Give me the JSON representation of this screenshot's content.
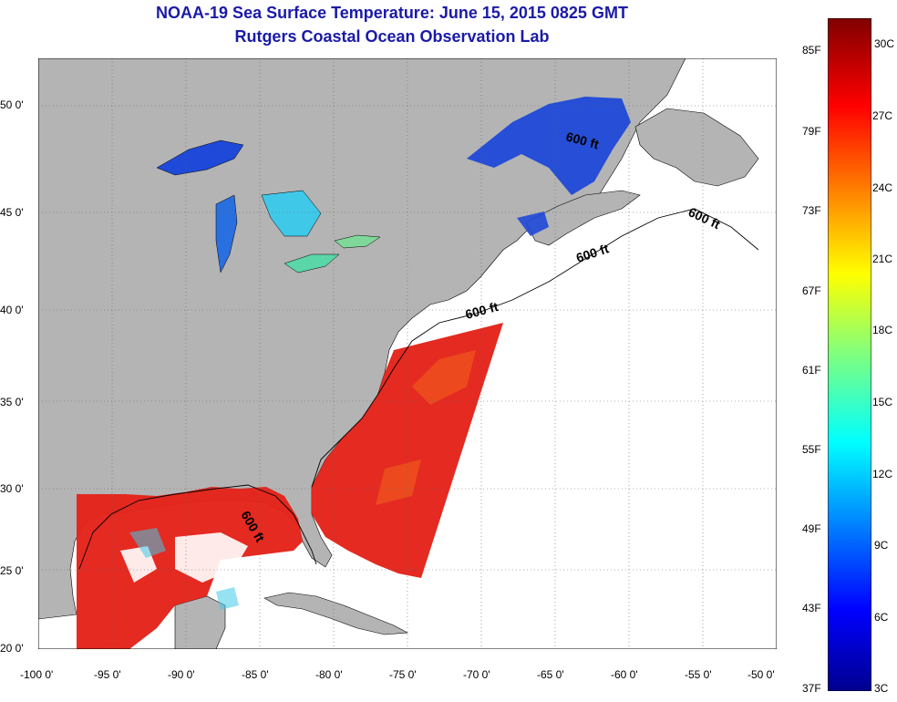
{
  "title": "NOAA-19 Sea Surface Temperature:  June 15, 2015 0825 GMT",
  "subtitle": "Rutgers Coastal Ocean Observation Lab",
  "map": {
    "lon_range": [
      -100,
      -50
    ],
    "lat_range": [
      20,
      52
    ],
    "lon_ticks": [
      "-100 0'",
      "-95 0'",
      "-90 0'",
      "-85 0'",
      "-80 0'",
      "-75 0'",
      "-70 0'",
      "-65 0'",
      "-60 0'",
      "-55 0'",
      "-50 0'"
    ],
    "lat_ticks": [
      "20 0'",
      "25 0'",
      "30 0'",
      "35 0'",
      "40 0'",
      "45 0'",
      "50 0'"
    ],
    "contour_labels": [
      "600 ft",
      "600 ft",
      "600 ft",
      "600 ft",
      "600 ft"
    ],
    "colors": {
      "land": "#b4b4b4",
      "cloud": "#ffffff",
      "warm": "#e8261a",
      "cold": "#1f49d8"
    }
  },
  "colorbar": {
    "fahrenheit_labels": [
      "85F",
      "79F",
      "73F",
      "67F",
      "61F",
      "55F",
      "49F",
      "43F",
      "37F"
    ],
    "celsius_labels": [
      "30C",
      "27C",
      "24C",
      "21C",
      "18C",
      "15C",
      "12C",
      "9C",
      "6C",
      "3C"
    ]
  }
}
